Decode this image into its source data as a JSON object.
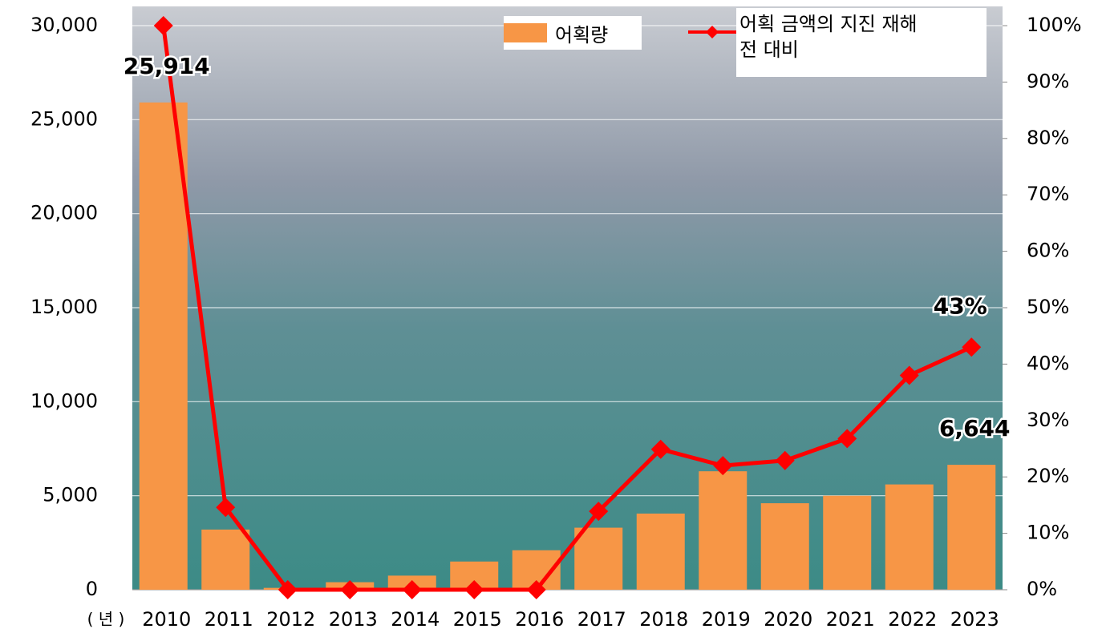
{
  "chart_data": {
    "type": "bar+line",
    "categories": [
      "2010",
      "2011",
      "2012",
      "2013",
      "2014",
      "2015",
      "2016",
      "2017",
      "2018",
      "2019",
      "2020",
      "2021",
      "2022",
      "2023"
    ],
    "x_label": "( 년 )",
    "series": [
      {
        "name": "어획량",
        "type": "bar",
        "color": "#f79646",
        "axis": "y",
        "values": [
          25914,
          3200,
          100,
          400,
          750,
          1500,
          2100,
          3300,
          4050,
          6300,
          4600,
          5000,
          5600,
          6644
        ],
        "value_labels": [
          "25,914",
          null,
          null,
          null,
          null,
          null,
          null,
          null,
          null,
          null,
          null,
          null,
          null,
          "6,644"
        ]
      },
      {
        "name": "어획 금액의 지진 재해 전 대비",
        "type": "line",
        "color": "#ff0000",
        "axis": "y2",
        "values": [
          100,
          14.6,
          0,
          0,
          0,
          0,
          0,
          13.9,
          24.9,
          22,
          22.9,
          26.8,
          38,
          43
        ],
        "value_labels": [
          null,
          null,
          null,
          null,
          null,
          null,
          null,
          null,
          null,
          null,
          null,
          null,
          null,
          "43%"
        ]
      }
    ],
    "ylim": [
      0,
      30000
    ],
    "yticks": [
      0,
      {
        "value": 5000,
        "label": "5,000"
      },
      {
        "value": 10000,
        "label": "10,000"
      },
      {
        "value": 15000,
        "label": "15,000"
      },
      {
        "value": 20000,
        "label": "20,000"
      },
      {
        "value": 25000,
        "label": "25,000"
      },
      {
        "value": 30000,
        "label": "30,000"
      }
    ],
    "y2lim": [
      0,
      100
    ],
    "y2ticks": [
      {
        "value": 0,
        "label": "0%"
      },
      {
        "value": 10,
        "label": "10%"
      },
      {
        "value": 20,
        "label": "20%"
      },
      {
        "value": 30,
        "label": "30%"
      },
      {
        "value": 40,
        "label": "40%"
      },
      {
        "value": 50,
        "label": "50%"
      },
      {
        "value": 60,
        "label": "60%"
      },
      {
        "value": 70,
        "label": "70%"
      },
      {
        "value": 80,
        "label": "80%"
      },
      {
        "value": 90,
        "label": "90%"
      },
      {
        "value": 100,
        "label": "100%"
      }
    ],
    "grid": true
  }
}
